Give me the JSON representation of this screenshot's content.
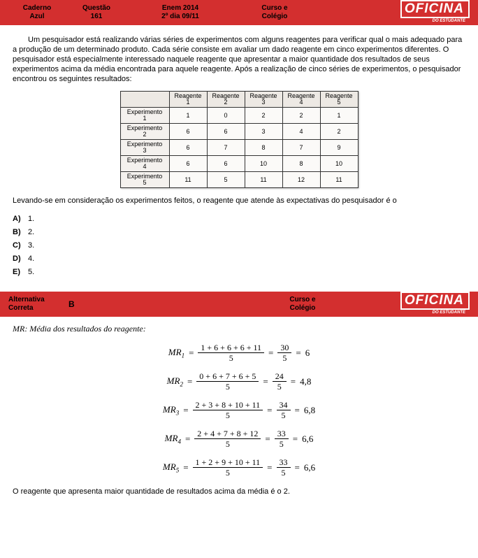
{
  "header1": {
    "c1a": "Caderno",
    "c1b": "Azul",
    "c2a": "Questão",
    "c2b": "161",
    "c3a": "Enem 2014",
    "c3b": "2º dia 09/11",
    "c4a": "Curso e",
    "c4b": "Colégio",
    "logo": "OFICINA",
    "logo_sub": "DO ESTUDANTE"
  },
  "question": {
    "text": "Um pesquisador está realizando várias séries de experimentos com alguns reagentes para verificar qual o mais adequado para a produção de um determinado produto. Cada série consiste em avaliar um dado reagente em cinco experimentos diferentes. O pesquisador está especialmente interessado naquele reagente que apresentar a maior quantidade dos resultados de seus experimentos acima da média encontrada para aquele reagente. Após a realização de cinco séries de experimentos, o pesquisador encontrou os seguintes resultados:",
    "after": "Levando-se em consideração os experimentos feitos, o reagente que atende às expectativas do pesquisador é o"
  },
  "table": {
    "col_head": "Reagente",
    "row_head": "Experimento",
    "cols": [
      "1",
      "2",
      "3",
      "4",
      "5"
    ],
    "rows": [
      {
        "n": "1",
        "v": [
          "1",
          "0",
          "2",
          "2",
          "1"
        ]
      },
      {
        "n": "2",
        "v": [
          "6",
          "6",
          "3",
          "4",
          "2"
        ]
      },
      {
        "n": "3",
        "v": [
          "6",
          "7",
          "8",
          "7",
          "9"
        ]
      },
      {
        "n": "4",
        "v": [
          "6",
          "6",
          "10",
          "8",
          "10"
        ]
      },
      {
        "n": "5",
        "v": [
          "11",
          "5",
          "11",
          "12",
          "11"
        ]
      }
    ],
    "col_width_rowh": 70,
    "col_width_val": 54,
    "bg_header": "#ede9e4",
    "bg_rowh": "#f4f1ee",
    "bg_val": "#fbfaf8",
    "border_color": "#333"
  },
  "options": {
    "labels": [
      "A)",
      "B)",
      "C)",
      "D)",
      "E)"
    ],
    "texts": [
      "1.",
      "2.",
      "3.",
      "4.",
      "5."
    ]
  },
  "header2": {
    "c1a": "Alternativa",
    "c1b": "Correta",
    "c2": "B",
    "c4a": "Curso e",
    "c4b": "Colégio",
    "logo": "OFICINA",
    "logo_sub": "DO ESTUDANTE"
  },
  "solution": {
    "title_pre": "MR",
    "title_post": ": Média dos resultados do reagente:",
    "eqs": [
      {
        "lhs": "MR",
        "sub": "1",
        "num1": "1 + 6 + 6 + 6 + 11",
        "den1": "5",
        "num2": "30",
        "den2": "5",
        "res": "6"
      },
      {
        "lhs": "MR",
        "sub": "2",
        "num1": "0 + 6 + 7 + 6 + 5",
        "den1": "5",
        "num2": "24",
        "den2": "5",
        "res": "4,8"
      },
      {
        "lhs": "MR",
        "sub": "3",
        "num1": "2 + 3 + 8 + 10 + 11",
        "den1": "5",
        "num2": "34",
        "den2": "5",
        "res": "6,8"
      },
      {
        "lhs": "MR",
        "sub": "4",
        "num1": "2 + 4 + 7 + 8 + 12",
        "den1": "5",
        "num2": "33",
        "den2": "5",
        "res": "6,6"
      },
      {
        "lhs": "MR",
        "sub": "5",
        "num1": "1 + 2 + 9 + 10 + 11",
        "den1": "5",
        "num2": "33",
        "den2": "5",
        "res": "6,6"
      }
    ],
    "conclusion": "O reagente que apresenta maior quantidade de resultados acima da média é o 2."
  },
  "colors": {
    "red": "#d32f2f",
    "white": "#ffffff",
    "black": "#000000"
  }
}
